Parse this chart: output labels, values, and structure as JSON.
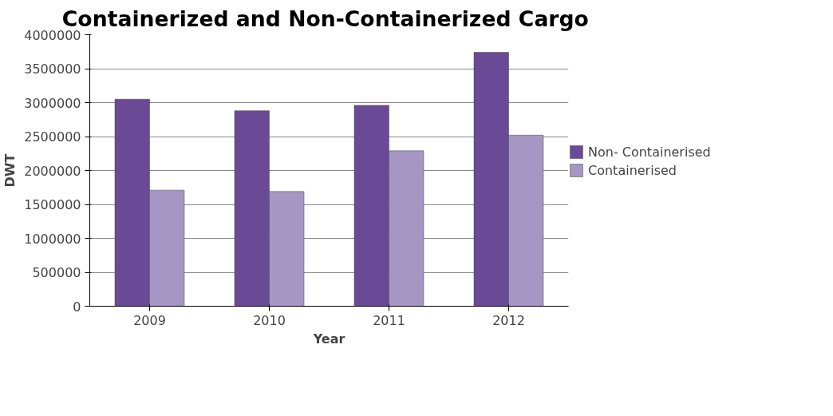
{
  "chart_data": {
    "type": "bar",
    "title": "Containerized and Non-Containerized  Cargo",
    "xlabel": "Year",
    "ylabel": "DWT",
    "categories": [
      "2009",
      "2010",
      "2011",
      "2012"
    ],
    "series": [
      {
        "name": "Non- Containerised",
        "color": "#6a4a96",
        "values": [
          3050000,
          2880000,
          2960000,
          3740000
        ]
      },
      {
        "name": "Containerised",
        "color": "#a696c4",
        "values": [
          1710000,
          1690000,
          2290000,
          2520000
        ]
      }
    ],
    "ylim": [
      0,
      4000000
    ],
    "yticks": [
      0,
      500000,
      1000000,
      1500000,
      2000000,
      2500000,
      3000000,
      3500000,
      4000000
    ],
    "grid": "y",
    "legend": "right"
  }
}
